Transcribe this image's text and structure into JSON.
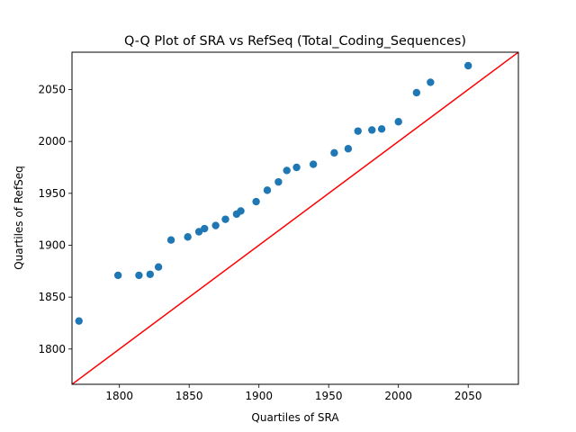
{
  "chart_data": {
    "type": "scatter",
    "title": "Q-Q Plot of SRA vs RefSeq (Total_Coding_Sequences)",
    "xlabel": "Quartiles of SRA",
    "ylabel": "Quartiles of RefSeq",
    "xlim": [
      1766,
      2086
    ],
    "ylim": [
      1766,
      2086
    ],
    "xticks": [
      1800,
      1850,
      1900,
      1950,
      2000,
      2050
    ],
    "yticks": [
      1800,
      1850,
      1900,
      1950,
      2000,
      2050
    ],
    "grid": false,
    "legend": "none",
    "colors": {
      "points": "#1f77b4",
      "reference_line": "#ff0000"
    },
    "reference_line": {
      "x": [
        1766,
        2086
      ],
      "y": [
        1766,
        2086
      ]
    },
    "points": [
      {
        "x": 1771,
        "y": 1827
      },
      {
        "x": 1799,
        "y": 1871
      },
      {
        "x": 1814,
        "y": 1871
      },
      {
        "x": 1822,
        "y": 1872
      },
      {
        "x": 1828,
        "y": 1879
      },
      {
        "x": 1837,
        "y": 1905
      },
      {
        "x": 1849,
        "y": 1908
      },
      {
        "x": 1857,
        "y": 1913
      },
      {
        "x": 1861,
        "y": 1916
      },
      {
        "x": 1869,
        "y": 1919
      },
      {
        "x": 1876,
        "y": 1925
      },
      {
        "x": 1884,
        "y": 1930
      },
      {
        "x": 1887,
        "y": 1933
      },
      {
        "x": 1898,
        "y": 1942
      },
      {
        "x": 1906,
        "y": 1953
      },
      {
        "x": 1914,
        "y": 1961
      },
      {
        "x": 1920,
        "y": 1972
      },
      {
        "x": 1927,
        "y": 1975
      },
      {
        "x": 1939,
        "y": 1978
      },
      {
        "x": 1954,
        "y": 1989
      },
      {
        "x": 1964,
        "y": 1993
      },
      {
        "x": 1971,
        "y": 2010
      },
      {
        "x": 1981,
        "y": 2011
      },
      {
        "x": 1988,
        "y": 2012
      },
      {
        "x": 2000,
        "y": 2019
      },
      {
        "x": 2013,
        "y": 2047
      },
      {
        "x": 2023,
        "y": 2057
      },
      {
        "x": 2050,
        "y": 2073
      }
    ]
  }
}
